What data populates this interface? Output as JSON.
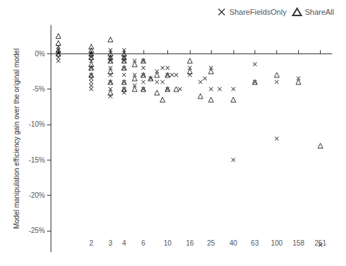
{
  "chart_data": {
    "type": "scatter",
    "ylabel": "Model manipulation efficiency gain over the original model",
    "log": "x",
    "xlim": [
      0.85,
      320
    ],
    "xticks": [
      {
        "value": 1,
        "label": null
      },
      2,
      3,
      4,
      6,
      10,
      16,
      25,
      40,
      63,
      100,
      158,
      251
    ],
    "ylim": [
      -0.28,
      0.04
    ],
    "yticks": [
      {
        "value": 0.0,
        "label": "0%"
      },
      {
        "value": -0.05,
        "label": "-5%"
      },
      {
        "value": -0.1,
        "label": "-10%"
      },
      {
        "value": -0.15,
        "label": "-15%"
      },
      {
        "value": -0.2,
        "label": "-20%"
      },
      {
        "value": -0.25,
        "label": "-25%"
      }
    ],
    "grid": false,
    "legend": "upper right",
    "series": [
      {
        "name": "ShareFieldsOnly",
        "marker": "x",
        "color": "black",
        "x": [
          1,
          1,
          1,
          1,
          1,
          2,
          2,
          2,
          2,
          2,
          2,
          2,
          2,
          2,
          3,
          3,
          3,
          3,
          3,
          3,
          3,
          3,
          4,
          4,
          4,
          4,
          4,
          4,
          4,
          4,
          5,
          5,
          5,
          6,
          6,
          6,
          6,
          6,
          7,
          8,
          8,
          9,
          9,
          10,
          10,
          10,
          11,
          12,
          13,
          16,
          16,
          20,
          22,
          25,
          25,
          30,
          40,
          40,
          63,
          63,
          100,
          100,
          158,
          251
        ],
        "values": [
          0.01,
          0.005,
          0.0,
          -0.005,
          -0.01,
          0.0,
          -0.005,
          -0.01,
          -0.02,
          -0.03,
          -0.035,
          -0.04,
          -0.045,
          -0.05,
          0.005,
          -0.005,
          -0.01,
          -0.02,
          -0.03,
          -0.04,
          -0.05,
          -0.06,
          0.005,
          -0.005,
          -0.01,
          -0.02,
          -0.03,
          -0.04,
          -0.05,
          -0.055,
          -0.01,
          -0.03,
          -0.045,
          -0.01,
          -0.02,
          -0.03,
          -0.04,
          -0.05,
          -0.035,
          -0.025,
          -0.04,
          -0.02,
          -0.04,
          -0.02,
          -0.03,
          -0.05,
          -0.03,
          -0.03,
          -0.05,
          -0.02,
          -0.03,
          -0.04,
          -0.035,
          -0.02,
          -0.05,
          -0.05,
          -0.05,
          -0.15,
          -0.015,
          -0.04,
          -0.04,
          -0.12,
          -0.035,
          -0.27
        ]
      },
      {
        "name": "ShareAll",
        "marker": "triangle_open",
        "color": "black",
        "x": [
          1,
          1,
          1,
          1,
          2,
          2,
          2,
          2,
          2,
          2,
          2,
          3,
          3,
          3,
          3,
          3,
          3,
          3,
          4,
          4,
          4,
          4,
          4,
          4,
          5,
          5,
          5,
          6,
          6,
          6,
          7,
          8,
          8,
          9,
          10,
          10,
          12,
          16,
          16,
          20,
          25,
          25,
          40,
          63,
          100,
          158,
          251
        ],
        "values": [
          0.025,
          0.015,
          0.005,
          0.0,
          0.01,
          0.005,
          0.0,
          -0.005,
          -0.015,
          -0.02,
          -0.03,
          0.02,
          0.0,
          -0.005,
          -0.01,
          -0.025,
          -0.04,
          -0.055,
          0.0,
          -0.005,
          -0.01,
          -0.02,
          -0.04,
          -0.05,
          -0.015,
          -0.035,
          -0.05,
          -0.01,
          -0.03,
          -0.05,
          -0.035,
          -0.03,
          -0.055,
          -0.065,
          -0.03,
          -0.05,
          -0.05,
          -0.01,
          -0.025,
          -0.06,
          -0.025,
          -0.065,
          -0.065,
          -0.04,
          -0.03,
          -0.04,
          -0.13
        ]
      }
    ]
  }
}
